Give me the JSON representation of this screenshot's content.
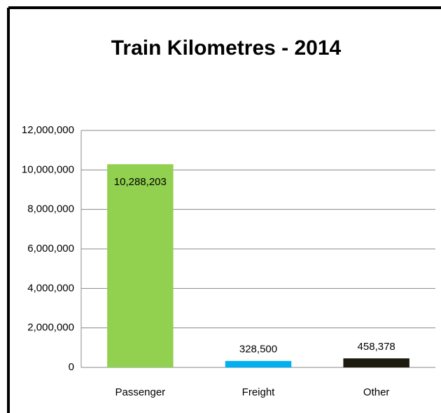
{
  "chart_data": {
    "type": "bar",
    "title": "Train Kilometres - 2014",
    "categories": [
      "Passenger",
      "Freight",
      "Other"
    ],
    "values": [
      10288203,
      328500,
      458378
    ],
    "value_labels": [
      "10,288,203",
      "328,500",
      "458,378"
    ],
    "colors": [
      "#92d050",
      "#00b0f0",
      "#1d1b10"
    ],
    "ylim": [
      0,
      12000000
    ],
    "yticks": [
      0,
      {
        "value": 2000000,
        "label": "2,000,000"
      },
      {
        "value": 4000000,
        "label": "4,000,000"
      },
      {
        "value": 6000000,
        "label": "6,000,000"
      },
      {
        "value": 8000000,
        "label": "8,000,000"
      },
      {
        "value": 10000000,
        "label": "10,000,000"
      },
      {
        "value": 12000000,
        "label": "12,000,000"
      }
    ],
    "grid": true
  }
}
